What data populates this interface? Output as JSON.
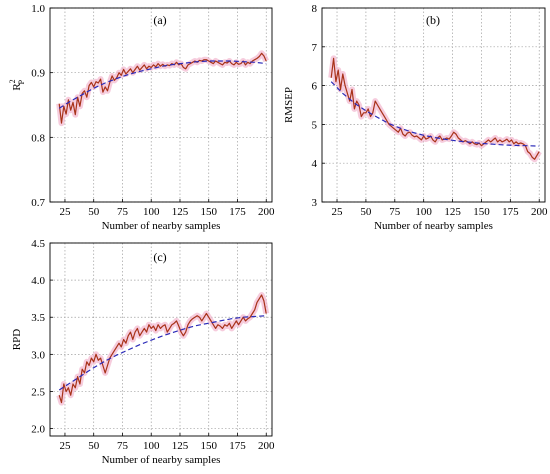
{
  "colors": {
    "measured": "#a83219",
    "fit": "#2a2ab8",
    "band": "#f2b6cf",
    "grid": "#a0a0a0",
    "axis": "#000000"
  },
  "chart_data": [
    {
      "type": "line",
      "panel_label": "(a)",
      "title": "",
      "xlabel": "Number of nearby samples",
      "ylabel_base": "R",
      "ylabel_sup": "2",
      "ylabel_sub": "P",
      "xlim": [
        12,
        205
      ],
      "ylim": [
        0.7,
        1.0
      ],
      "xticks": [
        25,
        50,
        75,
        100,
        125,
        150,
        175,
        200
      ],
      "yticks": [
        0.7,
        0.8,
        0.9,
        1.0
      ],
      "ytick_labels": [
        "0.7",
        "0.8",
        "0.9",
        "1.0"
      ],
      "grid": true,
      "series": [
        {
          "style": "solid",
          "x": [
            20,
            22,
            24,
            26,
            28,
            30,
            32,
            34,
            36,
            38,
            40,
            42,
            44,
            46,
            48,
            50,
            52,
            54,
            56,
            58,
            60,
            62,
            64,
            66,
            68,
            70,
            72,
            74,
            76,
            78,
            80,
            82,
            84,
            86,
            88,
            90,
            92,
            94,
            96,
            98,
            100,
            102,
            104,
            106,
            108,
            110,
            112,
            114,
            116,
            118,
            120,
            122,
            124,
            126,
            128,
            130,
            132,
            134,
            136,
            138,
            140,
            142,
            144,
            146,
            148,
            150,
            152,
            154,
            156,
            158,
            160,
            162,
            164,
            166,
            168,
            170,
            172,
            174,
            176,
            178,
            180,
            182,
            184,
            186,
            188,
            190,
            192,
            194,
            196,
            198,
            200
          ],
          "y": [
            0.852,
            0.822,
            0.848,
            0.836,
            0.858,
            0.842,
            0.854,
            0.835,
            0.862,
            0.848,
            0.868,
            0.872,
            0.862,
            0.88,
            0.885,
            0.878,
            0.886,
            0.884,
            0.89,
            0.87,
            0.878,
            0.872,
            0.885,
            0.895,
            0.888,
            0.892,
            0.9,
            0.896,
            0.905,
            0.898,
            0.902,
            0.906,
            0.9,
            0.905,
            0.91,
            0.904,
            0.908,
            0.912,
            0.906,
            0.91,
            0.908,
            0.912,
            0.909,
            0.914,
            0.91,
            0.913,
            0.91,
            0.912,
            0.911,
            0.914,
            0.912,
            0.916,
            0.912,
            0.914,
            0.908,
            0.906,
            0.912,
            0.914,
            0.916,
            0.918,
            0.916,
            0.919,
            0.918,
            0.92,
            0.92,
            0.918,
            0.916,
            0.914,
            0.918,
            0.916,
            0.914,
            0.912,
            0.916,
            0.915,
            0.918,
            0.914,
            0.912,
            0.916,
            0.913,
            0.914,
            0.918,
            0.912,
            0.916,
            0.914,
            0.918,
            0.92,
            0.922,
            0.925,
            0.93,
            0.926,
            0.918
          ]
        },
        {
          "style": "dashed",
          "x": [
            20,
            30,
            40,
            50,
            60,
            70,
            80,
            90,
            100,
            110,
            120,
            130,
            140,
            150,
            160,
            170,
            180,
            190,
            200
          ],
          "y": [
            0.845,
            0.856,
            0.866,
            0.876,
            0.884,
            0.891,
            0.897,
            0.902,
            0.906,
            0.91,
            0.913,
            0.915,
            0.917,
            0.918,
            0.918,
            0.918,
            0.917,
            0.916,
            0.914
          ]
        }
      ]
    },
    {
      "type": "line",
      "panel_label": "(b)",
      "title": "",
      "xlabel": "Number of nearby samples",
      "ylabel": "RMSEP",
      "xlim": [
        12,
        205
      ],
      "ylim": [
        3,
        8
      ],
      "xticks": [
        25,
        50,
        75,
        100,
        125,
        150,
        175,
        200
      ],
      "yticks": [
        3,
        4,
        5,
        6,
        7,
        8
      ],
      "ytick_labels": [
        "3",
        "4",
        "5",
        "6",
        "7",
        "8"
      ],
      "grid": true,
      "series": [
        {
          "style": "solid",
          "x": [
            20,
            22,
            24,
            26,
            28,
            30,
            32,
            34,
            36,
            38,
            40,
            42,
            44,
            46,
            48,
            50,
            52,
            54,
            56,
            58,
            60,
            62,
            64,
            66,
            68,
            70,
            72,
            74,
            76,
            78,
            80,
            82,
            84,
            86,
            88,
            90,
            92,
            94,
            96,
            98,
            100,
            102,
            104,
            106,
            108,
            110,
            112,
            114,
            116,
            118,
            120,
            122,
            124,
            126,
            128,
            130,
            132,
            134,
            136,
            138,
            140,
            142,
            144,
            146,
            148,
            150,
            152,
            154,
            156,
            158,
            160,
            162,
            164,
            166,
            168,
            170,
            172,
            174,
            176,
            178,
            180,
            182,
            184,
            186,
            188,
            190,
            192,
            194,
            196,
            198,
            200
          ],
          "y": [
            6.2,
            6.7,
            6.1,
            6.4,
            5.9,
            6.3,
            6.0,
            5.8,
            5.6,
            5.9,
            5.4,
            5.6,
            5.5,
            5.2,
            5.3,
            5.3,
            5.4,
            5.2,
            5.3,
            5.6,
            5.5,
            5.4,
            5.3,
            5.2,
            5.1,
            5.0,
            4.95,
            4.9,
            4.85,
            4.8,
            4.9,
            4.75,
            4.7,
            4.78,
            4.8,
            4.72,
            4.68,
            4.7,
            4.65,
            4.6,
            4.7,
            4.62,
            4.65,
            4.7,
            4.6,
            4.55,
            4.65,
            4.7,
            4.6,
            4.62,
            4.65,
            4.62,
            4.7,
            4.8,
            4.75,
            4.65,
            4.6,
            4.55,
            4.58,
            4.55,
            4.5,
            4.55,
            4.5,
            4.48,
            4.52,
            4.45,
            4.5,
            4.55,
            4.6,
            4.55,
            4.6,
            4.65,
            4.55,
            4.6,
            4.55,
            4.58,
            4.62,
            4.55,
            4.6,
            4.5,
            4.55,
            4.5,
            4.52,
            4.5,
            4.45,
            4.3,
            4.25,
            4.15,
            4.1,
            4.2,
            4.3
          ]
        },
        {
          "style": "dashed",
          "x": [
            20,
            30,
            40,
            50,
            60,
            70,
            80,
            90,
            100,
            110,
            120,
            130,
            140,
            150,
            160,
            170,
            180,
            190,
            200
          ],
          "y": [
            6.1,
            5.8,
            5.55,
            5.35,
            5.18,
            5.02,
            4.9,
            4.8,
            4.72,
            4.66,
            4.61,
            4.57,
            4.54,
            4.51,
            4.49,
            4.47,
            4.46,
            4.45,
            4.44
          ]
        }
      ]
    },
    {
      "type": "line",
      "panel_label": "(c)",
      "title": "",
      "xlabel": "Number of nearby samples",
      "ylabel": "RPD",
      "xlim": [
        12,
        205
      ],
      "ylim": [
        1.9,
        4.5
      ],
      "xticks": [
        25,
        50,
        75,
        100,
        125,
        150,
        175,
        200
      ],
      "yticks": [
        2.0,
        2.5,
        3.0,
        3.5,
        4.0,
        4.5
      ],
      "ytick_labels": [
        "2.0",
        "2.5",
        "3.0",
        "3.5",
        "4.0",
        "4.5"
      ],
      "grid": true,
      "series": [
        {
          "style": "solid",
          "x": [
            20,
            22,
            24,
            26,
            28,
            30,
            32,
            34,
            36,
            38,
            40,
            42,
            44,
            46,
            48,
            50,
            52,
            54,
            56,
            58,
            60,
            62,
            64,
            66,
            68,
            70,
            72,
            74,
            76,
            78,
            80,
            82,
            84,
            86,
            88,
            90,
            92,
            94,
            96,
            98,
            100,
            102,
            104,
            106,
            108,
            110,
            112,
            114,
            116,
            118,
            120,
            122,
            124,
            126,
            128,
            130,
            132,
            134,
            136,
            138,
            140,
            142,
            144,
            146,
            148,
            150,
            152,
            154,
            156,
            158,
            160,
            162,
            164,
            166,
            168,
            170,
            172,
            174,
            176,
            178,
            180,
            182,
            184,
            186,
            188,
            190,
            192,
            194,
            196,
            198,
            200
          ],
          "y": [
            2.45,
            2.35,
            2.6,
            2.5,
            2.55,
            2.45,
            2.6,
            2.55,
            2.7,
            2.6,
            2.8,
            2.75,
            2.9,
            2.85,
            2.95,
            2.9,
            3.0,
            2.92,
            2.95,
            2.85,
            2.75,
            2.85,
            2.95,
            3.0,
            3.05,
            3.1,
            3.15,
            3.1,
            3.2,
            3.15,
            3.25,
            3.3,
            3.2,
            3.3,
            3.35,
            3.25,
            3.3,
            3.35,
            3.3,
            3.4,
            3.35,
            3.38,
            3.32,
            3.4,
            3.35,
            3.38,
            3.4,
            3.3,
            3.35,
            3.4,
            3.42,
            3.45,
            3.38,
            3.3,
            3.25,
            3.3,
            3.4,
            3.45,
            3.48,
            3.5,
            3.52,
            3.5,
            3.45,
            3.5,
            3.55,
            3.5,
            3.45,
            3.4,
            3.35,
            3.4,
            3.38,
            3.35,
            3.4,
            3.38,
            3.42,
            3.35,
            3.4,
            3.45,
            3.4,
            3.45,
            3.5,
            3.45,
            3.48,
            3.5,
            3.55,
            3.6,
            3.7,
            3.75,
            3.8,
            3.72,
            3.55
          ]
        },
        {
          "style": "dashed",
          "x": [
            20,
            30,
            40,
            50,
            60,
            70,
            80,
            90,
            100,
            110,
            120,
            130,
            140,
            150,
            160,
            170,
            180,
            190,
            200
          ],
          "y": [
            2.52,
            2.62,
            2.72,
            2.82,
            2.91,
            2.99,
            3.06,
            3.13,
            3.19,
            3.25,
            3.3,
            3.35,
            3.39,
            3.42,
            3.45,
            3.48,
            3.5,
            3.51,
            3.52
          ]
        }
      ]
    }
  ]
}
